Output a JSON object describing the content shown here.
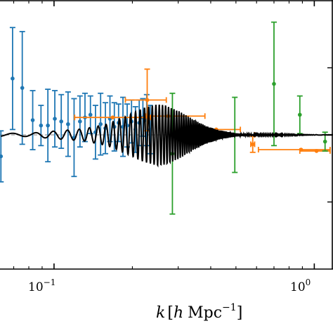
{
  "chart_data": {
    "type": "scatter",
    "title": "",
    "xlabel": "",
    "ylabel": "",
    "xscale": "log",
    "xlim": [
      0.062,
      1.18
    ],
    "ylim": [
      -1.0,
      1.0
    ],
    "grid": false,
    "x_tick_labels": [
      {
        "value": 0.1,
        "base": "10",
        "exp": "−1"
      },
      {
        "value": 1.0,
        "base": "10",
        "exp": "0"
      }
    ],
    "x_axis_label": {
      "k": "k",
      "h": "h",
      "unit": "Mpc",
      "exp": "−1"
    },
    "reference_line_y": 0.0,
    "colors": {
      "blue": "#1f77b4",
      "orange": "#ff7f0e",
      "green": "#2ca02c",
      "model": "#000000"
    },
    "series": [
      {
        "color": "blue",
        "points": [
          {
            "x": 0.0625,
            "y": -0.16,
            "yerr": 0.19
          },
          {
            "x": 0.0693,
            "y": 0.42,
            "yerr": 0.38
          },
          {
            "x": 0.0755,
            "y": 0.35,
            "yerr": 0.42
          },
          {
            "x": 0.0828,
            "y": 0.11,
            "yerr": 0.22
          },
          {
            "x": 0.0891,
            "y": 0.07,
            "yerr": 0.15
          },
          {
            "x": 0.0947,
            "y": 0.07,
            "yerr": 0.27
          },
          {
            "x": 0.1007,
            "y": 0.12,
            "yerr": 0.21
          },
          {
            "x": 0.1066,
            "y": 0.1,
            "yerr": 0.2
          },
          {
            "x": 0.1132,
            "y": 0.08,
            "yerr": 0.24
          },
          {
            "x": 0.1194,
            "y": -0.02,
            "yerr": 0.29
          },
          {
            "x": 0.1258,
            "y": 0.1,
            "yerr": 0.19
          },
          {
            "x": 0.1315,
            "y": 0.13,
            "yerr": 0.18
          },
          {
            "x": 0.138,
            "y": 0.15,
            "yerr": 0.14
          },
          {
            "x": 0.1443,
            "y": 0.02,
            "yerr": 0.2
          },
          {
            "x": 0.151,
            "y": 0.08,
            "yerr": 0.23
          },
          {
            "x": 0.1575,
            "y": 0.05,
            "yerr": 0.19
          },
          {
            "x": 0.164,
            "y": 0.12,
            "yerr": 0.17
          },
          {
            "x": 0.1705,
            "y": 0.06,
            "yerr": 0.18
          },
          {
            "x": 0.177,
            "y": 0.09,
            "yerr": 0.14
          },
          {
            "x": 0.184,
            "y": 0.06,
            "yerr": 0.22
          },
          {
            "x": 0.191,
            "y": 0.07,
            "yerr": 0.16
          },
          {
            "x": 0.1985,
            "y": 0.1,
            "yerr": 0.16
          },
          {
            "x": 0.2055,
            "y": 0.04,
            "yerr": 0.17
          },
          {
            "x": 0.2125,
            "y": 0.09,
            "yerr": 0.17
          },
          {
            "x": 0.2195,
            "y": 0.13,
            "yerr": 0.14
          },
          {
            "x": 0.227,
            "y": 0.11,
            "yerr": 0.19
          },
          {
            "x": 0.234,
            "y": 0.04,
            "yerr": 0.18
          }
        ]
      },
      {
        "color": "orange",
        "points": [
          {
            "x": 0.168,
            "y": 0.13,
            "xlo": 0.12,
            "xhi": 0.235
          },
          {
            "x": 0.228,
            "y": 0.26,
            "xlo": 0.188,
            "xhi": 0.27,
            "yerr": 0.23
          },
          {
            "x": 0.275,
            "y": 0.14,
            "xlo": 0.225,
            "xhi": 0.38
          },
          {
            "x": 0.345,
            "y": 0.03,
            "xlo": 0.29,
            "xhi": 0.4
          },
          {
            "x": 0.42,
            "y": 0.04,
            "xlo": 0.345,
            "xhi": 0.52
          },
          {
            "x": 0.468,
            "y": 0.0,
            "xlo": 0.38,
            "xhi": 0.59
          },
          {
            "x": 0.58,
            "y": -0.07,
            "xlo": 0.57,
            "xhi": 0.59,
            "yerr": 0.06
          },
          {
            "x": 0.89,
            "y": -0.11,
            "xlo": 0.61,
            "xhi": 1.15
          },
          {
            "x": 1.02,
            "y": -0.12,
            "xlo": 0.88,
            "xhi": 1.15
          }
        ]
      },
      {
        "color": "green",
        "points": [
          {
            "x": 0.285,
            "y": -0.14,
            "yerr": 0.45
          },
          {
            "x": 0.495,
            "y": 0.0,
            "yerr": 0.28
          },
          {
            "x": 0.7,
            "y": 0.38,
            "yerr": 0.46
          },
          {
            "x": 0.88,
            "y": 0.15,
            "yerr": 0.14
          },
          {
            "x": 1.1,
            "y": -0.05,
            "yerr": 0.07
          }
        ]
      }
    ],
    "model": {
      "x_start": 0.0625,
      "x_end": 1.18,
      "envelope": [
        [
          0.0625,
          0.012
        ],
        [
          0.08,
          0.012
        ],
        [
          0.1,
          0.028
        ],
        [
          0.13,
          0.045
        ],
        [
          0.16,
          0.08
        ],
        [
          0.19,
          0.14
        ],
        [
          0.22,
          0.2
        ],
        [
          0.25,
          0.23
        ],
        [
          0.27,
          0.22
        ],
        [
          0.3,
          0.18
        ],
        [
          0.34,
          0.12
        ],
        [
          0.38,
          0.07
        ],
        [
          0.43,
          0.035
        ],
        [
          0.5,
          0.012
        ],
        [
          0.6,
          0.004
        ],
        [
          1.18,
          0.001
        ]
      ],
      "base_freq": 3.3,
      "chirp": 2.0
    }
  }
}
